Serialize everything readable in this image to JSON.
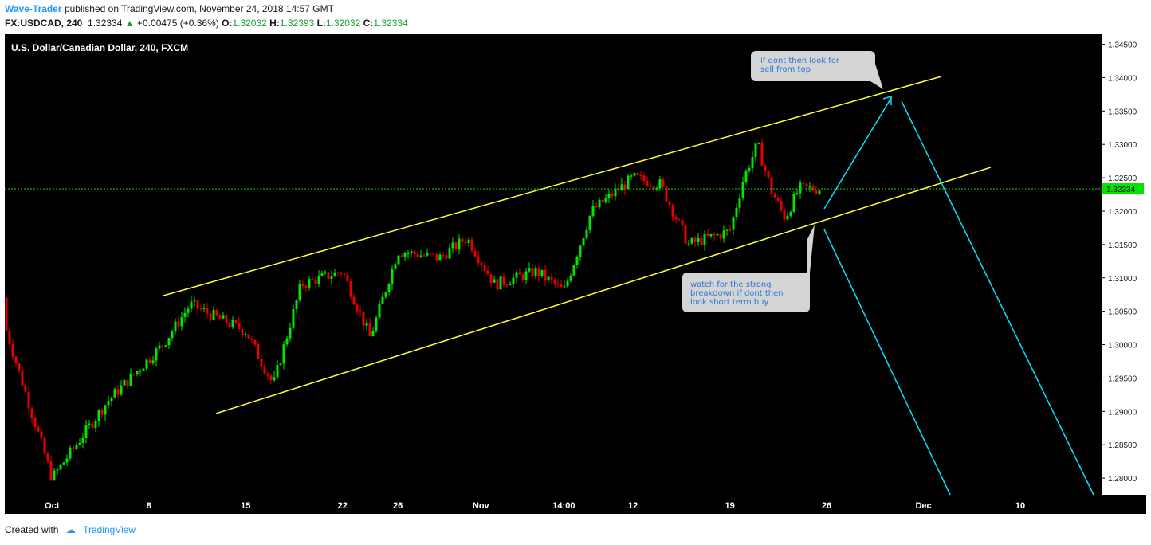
{
  "header": {
    "author": "Wave-Trader",
    "published": "published on TradingView.com, November 24, 2018 14:57 GMT",
    "symbol": "FX:USDCAD, 240",
    "last": "1.32334",
    "change": "+0.00475 (+0.36%)",
    "o_label": "O:",
    "o": "1.32032",
    "h_label": "H:",
    "h": "1.32393",
    "l_label": "L:",
    "l": "1.32032",
    "c_label": "C:",
    "c": "1.32334"
  },
  "footer": {
    "created_with": "Created with",
    "brand": "TradingView"
  },
  "colors": {
    "up": "#00e600",
    "down": "#e60000",
    "channel": "#ffff33",
    "arrow": "#00e5ff",
    "price_line": "#00e600",
    "background": "#000000"
  },
  "chart_data": {
    "type": "candlestick",
    "title": "U.S. Dollar/Canadian Dollar, 240, FXCM",
    "ylim": [
      1.2775,
      1.3465
    ],
    "y_ticks": [
      "1.34500",
      "1.34000",
      "1.33500",
      "1.33000",
      "1.32500",
      "1.32000",
      "1.31500",
      "1.31000",
      "1.30500",
      "1.30000",
      "1.29500",
      "1.29000",
      "1.28500",
      "1.28000"
    ],
    "x_ticks": [
      "Oct",
      "8",
      "15",
      "22",
      "26",
      "Nov",
      "14:00",
      "12",
      "19",
      "26",
      "Dec",
      "10"
    ],
    "current_price": "1.32334",
    "key_closes": [
      {
        "date": "2018-09-27",
        "close": 1.307
      },
      {
        "date": "2018-09-28",
        "close": 1.3
      },
      {
        "date": "2018-10-01",
        "close": 1.28
      },
      {
        "date": "2018-10-05",
        "close": 1.2915
      },
      {
        "date": "2018-10-09",
        "close": 1.3
      },
      {
        "date": "2018-10-11",
        "close": 1.306
      },
      {
        "date": "2018-10-15",
        "close": 1.302
      },
      {
        "date": "2018-10-17",
        "close": 1.294
      },
      {
        "date": "2018-10-19",
        "close": 1.309
      },
      {
        "date": "2018-10-22",
        "close": 1.311
      },
      {
        "date": "2018-10-24",
        "close": 1.301
      },
      {
        "date": "2018-10-26",
        "close": 1.314
      },
      {
        "date": "2018-10-29",
        "close": 1.313
      },
      {
        "date": "2018-10-31",
        "close": 1.316
      },
      {
        "date": "2018-11-02",
        "close": 1.309
      },
      {
        "date": "2018-11-05",
        "close": 1.311
      },
      {
        "date": "2018-11-07",
        "close": 1.308
      },
      {
        "date": "2018-11-09",
        "close": 1.32
      },
      {
        "date": "2018-11-12",
        "close": 1.325
      },
      {
        "date": "2018-11-14",
        "close": 1.324
      },
      {
        "date": "2018-11-16",
        "close": 1.315
      },
      {
        "date": "2018-11-19",
        "close": 1.317
      },
      {
        "date": "2018-11-20",
        "close": 1.325
      },
      {
        "date": "2018-11-21",
        "close": 1.33
      },
      {
        "date": "2018-11-22",
        "close": 1.323
      },
      {
        "date": "2018-11-23",
        "close": 1.319
      },
      {
        "date": "2018-11-24",
        "close": 1.32334
      }
    ],
    "annotations": [
      {
        "text_lines": [
          "if dont then look for",
          "sell from top"
        ]
      },
      {
        "text_lines": [
          "watch for the strong",
          "breakdown if dont then",
          "look short term buy"
        ]
      }
    ]
  }
}
